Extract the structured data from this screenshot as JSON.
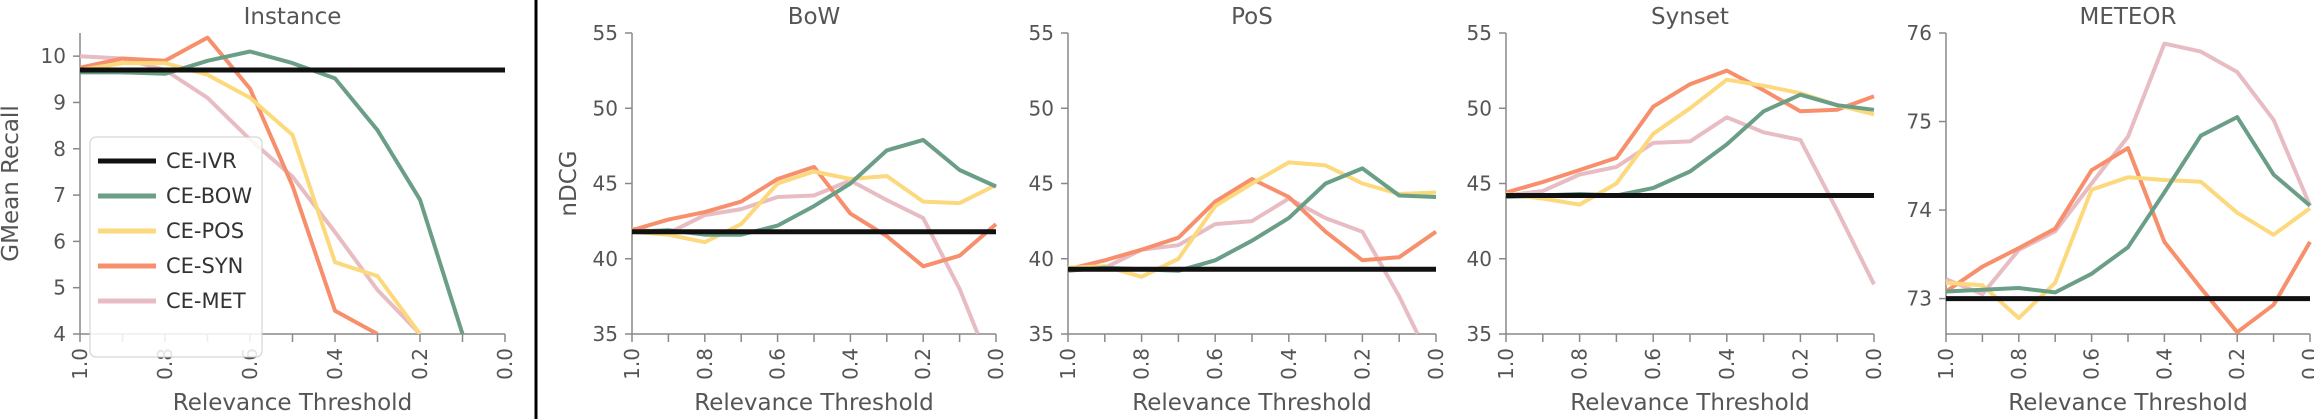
{
  "colors": {
    "CE-IVR": "#111111",
    "CE-BOW": "#6a9e87",
    "CE-POS": "#fcd97c",
    "CE-SYN": "#f78f6c",
    "CE-MET": "#e8bcc3"
  },
  "legend": [
    "CE-IVR",
    "CE-BOW",
    "CE-POS",
    "CE-SYN",
    "CE-MET"
  ],
  "chart_data": [
    {
      "type": "line",
      "title": "Instance",
      "xlabel": "Relevance Threshold",
      "ylabel": "GMean Recall",
      "xlim": [
        1.0,
        0.0
      ],
      "ylim": [
        4,
        10.5
      ],
      "xticks": [
        "1.0",
        "0.8",
        "0.6",
        "0.4",
        "0.2",
        "0.0"
      ],
      "yticks": [
        "4",
        "5",
        "6",
        "7",
        "8",
        "9",
        "10"
      ],
      "series": [
        {
          "name": "CE-IVR",
          "x": [
            1.0,
            0.0
          ],
          "y": [
            9.7,
            9.7
          ]
        },
        {
          "name": "CE-BOW",
          "x": [
            1.0,
            0.9,
            0.8,
            0.7,
            0.6,
            0.5,
            0.4,
            0.3,
            0.2,
            0.1
          ],
          "y": [
            9.65,
            9.65,
            9.62,
            9.9,
            10.1,
            9.85,
            9.52,
            8.4,
            6.9,
            4.0
          ]
        },
        {
          "name": "CE-POS",
          "x": [
            1.0,
            0.9,
            0.8,
            0.7,
            0.6,
            0.5,
            0.4,
            0.3,
            0.2
          ],
          "y": [
            9.7,
            9.85,
            9.85,
            9.6,
            9.1,
            8.3,
            5.55,
            5.25,
            4.0
          ]
        },
        {
          "name": "CE-SYN",
          "x": [
            1.0,
            0.9,
            0.8,
            0.7,
            0.6,
            0.5,
            0.4,
            0.3
          ],
          "y": [
            9.75,
            9.95,
            9.9,
            10.4,
            9.3,
            7.2,
            4.5,
            4.0
          ]
        },
        {
          "name": "CE-MET",
          "x": [
            1.0,
            0.9,
            0.8,
            0.7,
            0.6,
            0.5,
            0.4,
            0.3,
            0.2
          ],
          "y": [
            10.0,
            9.95,
            9.7,
            9.1,
            8.2,
            7.4,
            6.2,
            4.95,
            4.0
          ]
        }
      ]
    },
    {
      "type": "line",
      "title": "BoW",
      "xlabel": "Relevance Threshold",
      "ylabel": "nDCG",
      "xlim": [
        1.0,
        0.0
      ],
      "ylim": [
        35,
        55
      ],
      "xticks": [
        "1.0",
        "0.8",
        "0.6",
        "0.4",
        "0.2",
        "0.0"
      ],
      "yticks": [
        "35",
        "40",
        "45",
        "50",
        "55"
      ],
      "series": [
        {
          "name": "CE-IVR",
          "x": [
            1.0,
            0.0
          ],
          "y": [
            41.8,
            41.8
          ]
        },
        {
          "name": "CE-BOW",
          "x": [
            1.0,
            0.9,
            0.8,
            0.7,
            0.6,
            0.5,
            0.4,
            0.3,
            0.2,
            0.1,
            0.0
          ],
          "y": [
            41.8,
            41.9,
            41.6,
            41.6,
            42.2,
            43.5,
            45.0,
            47.2,
            47.9,
            45.9,
            44.8
          ]
        },
        {
          "name": "CE-POS",
          "x": [
            1.0,
            0.9,
            0.8,
            0.7,
            0.6,
            0.5,
            0.4,
            0.3,
            0.2,
            0.1,
            0.0
          ],
          "y": [
            41.8,
            41.6,
            41.1,
            42.3,
            45.0,
            45.8,
            45.3,
            45.5,
            43.8,
            43.7,
            44.9
          ]
        },
        {
          "name": "CE-SYN",
          "x": [
            1.0,
            0.9,
            0.8,
            0.7,
            0.6,
            0.5,
            0.4,
            0.3,
            0.2,
            0.1,
            0.0
          ],
          "y": [
            41.9,
            42.6,
            43.1,
            43.8,
            45.3,
            46.1,
            43.0,
            41.5,
            39.5,
            40.2,
            42.3
          ]
        },
        {
          "name": "CE-MET",
          "x": [
            1.0,
            0.9,
            0.8,
            0.7,
            0.6,
            0.5,
            0.4,
            0.3,
            0.2,
            0.1,
            0.05
          ],
          "y": [
            42.0,
            41.7,
            42.9,
            43.3,
            44.1,
            44.2,
            45.2,
            43.9,
            42.7,
            38.0,
            35.0
          ]
        }
      ]
    },
    {
      "type": "line",
      "title": "PoS",
      "xlabel": "Relevance Threshold",
      "ylabel": "",
      "xlim": [
        1.0,
        0.0
      ],
      "ylim": [
        35,
        55
      ],
      "xticks": [
        "1.0",
        "0.8",
        "0.6",
        "0.4",
        "0.2",
        "0.0"
      ],
      "yticks": [
        "35",
        "40",
        "45",
        "50",
        "55"
      ],
      "series": [
        {
          "name": "CE-IVR",
          "x": [
            1.0,
            0.0
          ],
          "y": [
            39.3,
            39.3
          ]
        },
        {
          "name": "CE-BOW",
          "x": [
            1.0,
            0.9,
            0.8,
            0.7,
            0.6,
            0.5,
            0.4,
            0.3,
            0.2,
            0.1,
            0.0
          ],
          "y": [
            39.2,
            39.4,
            39.3,
            39.2,
            39.9,
            41.2,
            42.7,
            45.0,
            46.0,
            44.2,
            44.1
          ]
        },
        {
          "name": "CE-POS",
          "x": [
            1.0,
            0.9,
            0.8,
            0.7,
            0.6,
            0.5,
            0.4,
            0.3,
            0.2,
            0.1,
            0.0
          ],
          "y": [
            39.4,
            39.5,
            38.8,
            40.0,
            43.5,
            45.0,
            46.4,
            46.2,
            45.0,
            44.3,
            44.4
          ]
        },
        {
          "name": "CE-SYN",
          "x": [
            1.0,
            0.9,
            0.8,
            0.7,
            0.6,
            0.5,
            0.4,
            0.3,
            0.2,
            0.1,
            0.0
          ],
          "y": [
            39.3,
            39.9,
            40.6,
            41.4,
            43.8,
            45.3,
            44.1,
            41.8,
            39.9,
            40.1,
            41.8
          ]
        },
        {
          "name": "CE-MET",
          "x": [
            1.0,
            0.9,
            0.8,
            0.7,
            0.6,
            0.5,
            0.4,
            0.3,
            0.2,
            0.1,
            0.05
          ],
          "y": [
            39.4,
            39.4,
            40.6,
            40.9,
            42.3,
            42.5,
            44.0,
            42.7,
            41.8,
            37.5,
            35.0
          ]
        }
      ]
    },
    {
      "type": "line",
      "title": "Synset",
      "xlabel": "Relevance Threshold",
      "ylabel": "",
      "xlim": [
        1.0,
        0.0
      ],
      "ylim": [
        35,
        55
      ],
      "xticks": [
        "1.0",
        "0.8",
        "0.6",
        "0.4",
        "0.2",
        "0.0"
      ],
      "yticks": [
        "35",
        "40",
        "45",
        "50",
        "55"
      ],
      "series": [
        {
          "name": "CE-IVR",
          "x": [
            1.0,
            0.0
          ],
          "y": [
            44.2,
            44.2
          ]
        },
        {
          "name": "CE-BOW",
          "x": [
            1.0,
            0.9,
            0.8,
            0.7,
            0.6,
            0.5,
            0.4,
            0.3,
            0.2,
            0.1,
            0.0
          ],
          "y": [
            44.1,
            44.2,
            44.3,
            44.2,
            44.7,
            45.8,
            47.6,
            49.8,
            50.9,
            50.2,
            49.9
          ]
        },
        {
          "name": "CE-POS",
          "x": [
            1.0,
            0.9,
            0.8,
            0.7,
            0.6,
            0.5,
            0.4,
            0.3,
            0.2,
            0.1,
            0.0
          ],
          "y": [
            44.3,
            44.0,
            43.6,
            45.0,
            48.3,
            50.0,
            51.9,
            51.5,
            51.0,
            50.2,
            49.6
          ]
        },
        {
          "name": "CE-SYN",
          "x": [
            1.0,
            0.9,
            0.8,
            0.7,
            0.6,
            0.5,
            0.4,
            0.3,
            0.2,
            0.1,
            0.0
          ],
          "y": [
            44.4,
            45.1,
            45.9,
            46.7,
            50.1,
            51.6,
            52.5,
            51.2,
            49.8,
            49.9,
            50.8
          ]
        },
        {
          "name": "CE-MET",
          "x": [
            1.0,
            0.9,
            0.8,
            0.7,
            0.6,
            0.5,
            0.4,
            0.3,
            0.2,
            0.1,
            0.0
          ],
          "y": [
            44.2,
            44.5,
            45.6,
            46.1,
            47.7,
            47.8,
            49.4,
            48.4,
            47.9,
            43.2,
            38.3
          ]
        }
      ]
    },
    {
      "type": "line",
      "title": "METEOR",
      "xlabel": "Relevance Threshold",
      "ylabel": "",
      "xlim": [
        1.0,
        0.0
      ],
      "ylim": [
        72.6,
        76
      ],
      "xticks": [
        "1.0",
        "0.8",
        "0.6",
        "0.4",
        "0.2",
        "0.0"
      ],
      "yticks": [
        "73",
        "74",
        "75",
        "76"
      ],
      "series": [
        {
          "name": "CE-IVR",
          "x": [
            1.0,
            0.0
          ],
          "y": [
            73.0,
            73.0
          ]
        },
        {
          "name": "CE-BOW",
          "x": [
            1.0,
            0.9,
            0.8,
            0.7,
            0.6,
            0.5,
            0.4,
            0.3,
            0.2,
            0.1,
            0.0
          ],
          "y": [
            73.08,
            73.1,
            73.12,
            73.07,
            73.28,
            73.58,
            74.2,
            74.84,
            75.05,
            74.4,
            74.05
          ]
        },
        {
          "name": "CE-POS",
          "x": [
            1.0,
            0.9,
            0.8,
            0.7,
            0.6,
            0.5,
            0.4,
            0.3,
            0.2,
            0.1,
            0.0
          ],
          "y": [
            73.18,
            73.15,
            72.78,
            73.18,
            74.23,
            74.37,
            74.34,
            74.32,
            73.97,
            73.72,
            74.02
          ]
        },
        {
          "name": "CE-SYN",
          "x": [
            1.0,
            0.9,
            0.8,
            0.7,
            0.6,
            0.5,
            0.4,
            0.3,
            0.2,
            0.1,
            0.0
          ],
          "y": [
            73.08,
            73.36,
            73.57,
            73.79,
            74.45,
            74.7,
            73.64,
            73.12,
            72.62,
            72.93,
            73.64
          ]
        },
        {
          "name": "CE-MET",
          "x": [
            1.0,
            0.9,
            0.8,
            0.7,
            0.6,
            0.5,
            0.4,
            0.3,
            0.2,
            0.1,
            0.0
          ],
          "y": [
            73.22,
            73.05,
            73.55,
            73.76,
            74.3,
            74.83,
            75.88,
            75.79,
            75.56,
            75.02,
            74.05
          ]
        }
      ]
    }
  ]
}
